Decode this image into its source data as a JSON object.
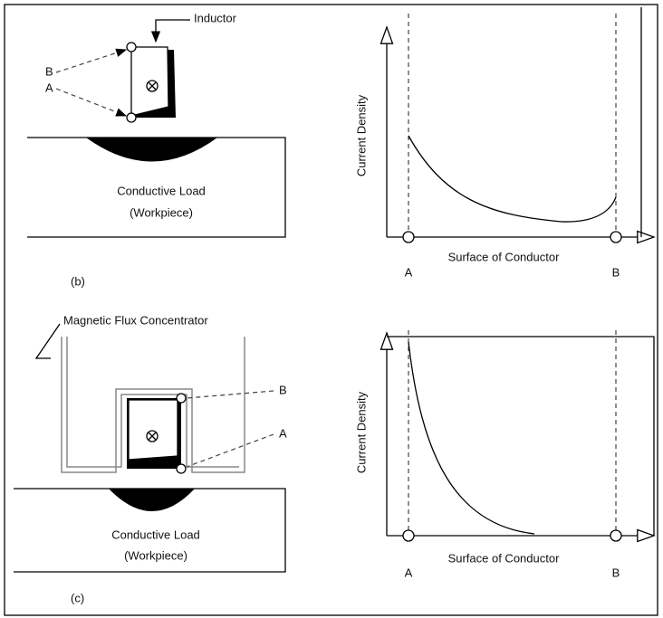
{
  "panel_b": {
    "inductor_label": "Inductor",
    "label_b": "B",
    "label_a": "A",
    "load_title": "Conductive Load",
    "load_subtitle": "(Workpiece)",
    "y_axis_label": "Current Density",
    "x_axis_label": "Surface of Conductor",
    "x_label_a": "A",
    "x_label_b": "B",
    "caption": "(b)"
  },
  "panel_c": {
    "concentrator_label": "Magnetic Flux Concentrator",
    "label_b": "B",
    "label_a": "A",
    "load_title": "Conductive Load",
    "load_subtitle": "(Workpiece)",
    "y_axis_label": "Current Density",
    "x_axis_label": "Surface of Conductor",
    "x_label_a": "A",
    "x_label_b": "B",
    "caption": "(c)"
  }
}
